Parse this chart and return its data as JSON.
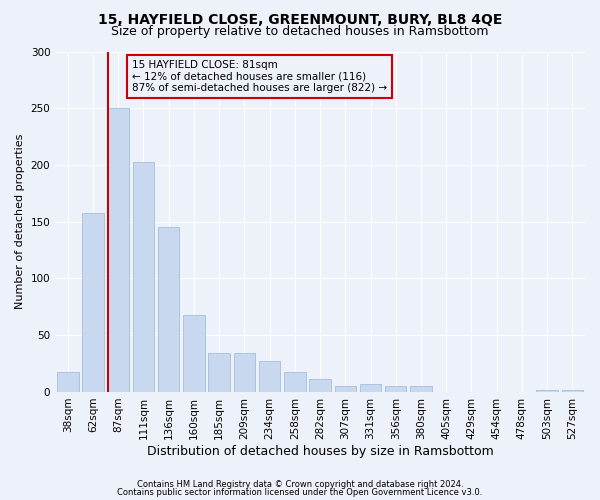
{
  "title": "15, HAYFIELD CLOSE, GREENMOUNT, BURY, BL8 4QE",
  "subtitle": "Size of property relative to detached houses in Ramsbottom",
  "xlabel": "Distribution of detached houses by size in Ramsbottom",
  "ylabel": "Number of detached properties",
  "categories": [
    "38sqm",
    "62sqm",
    "87sqm",
    "111sqm",
    "136sqm",
    "160sqm",
    "185sqm",
    "209sqm",
    "234sqm",
    "258sqm",
    "282sqm",
    "307sqm",
    "331sqm",
    "356sqm",
    "380sqm",
    "405sqm",
    "429sqm",
    "454sqm",
    "478sqm",
    "503sqm",
    "527sqm"
  ],
  "values": [
    18,
    158,
    250,
    203,
    145,
    68,
    34,
    34,
    27,
    18,
    11,
    5,
    7,
    5,
    5,
    0,
    0,
    0,
    0,
    2,
    2
  ],
  "bar_color": "#c8d9ef",
  "bar_edge_color": "#aac4e0",
  "marker_line_color": "#cc0000",
  "ylim": [
    0,
    300
  ],
  "yticks": [
    0,
    50,
    100,
    150,
    200,
    250,
    300
  ],
  "annotation_text": "15 HAYFIELD CLOSE: 81sqm\n← 12% of detached houses are smaller (116)\n87% of semi-detached houses are larger (822) →",
  "annotation_box_color": "#cc0000",
  "footer_line1": "Contains HM Land Registry data © Crown copyright and database right 2024.",
  "footer_line2": "Contains public sector information licensed under the Open Government Licence v3.0.",
  "bg_color": "#edf1f9",
  "grid_color": "#ffffff",
  "title_fontsize": 10,
  "subtitle_fontsize": 9,
  "xlabel_fontsize": 9,
  "ylabel_fontsize": 8,
  "tick_fontsize": 7.5,
  "annotation_fontsize": 7.5,
  "footer_fontsize": 6
}
